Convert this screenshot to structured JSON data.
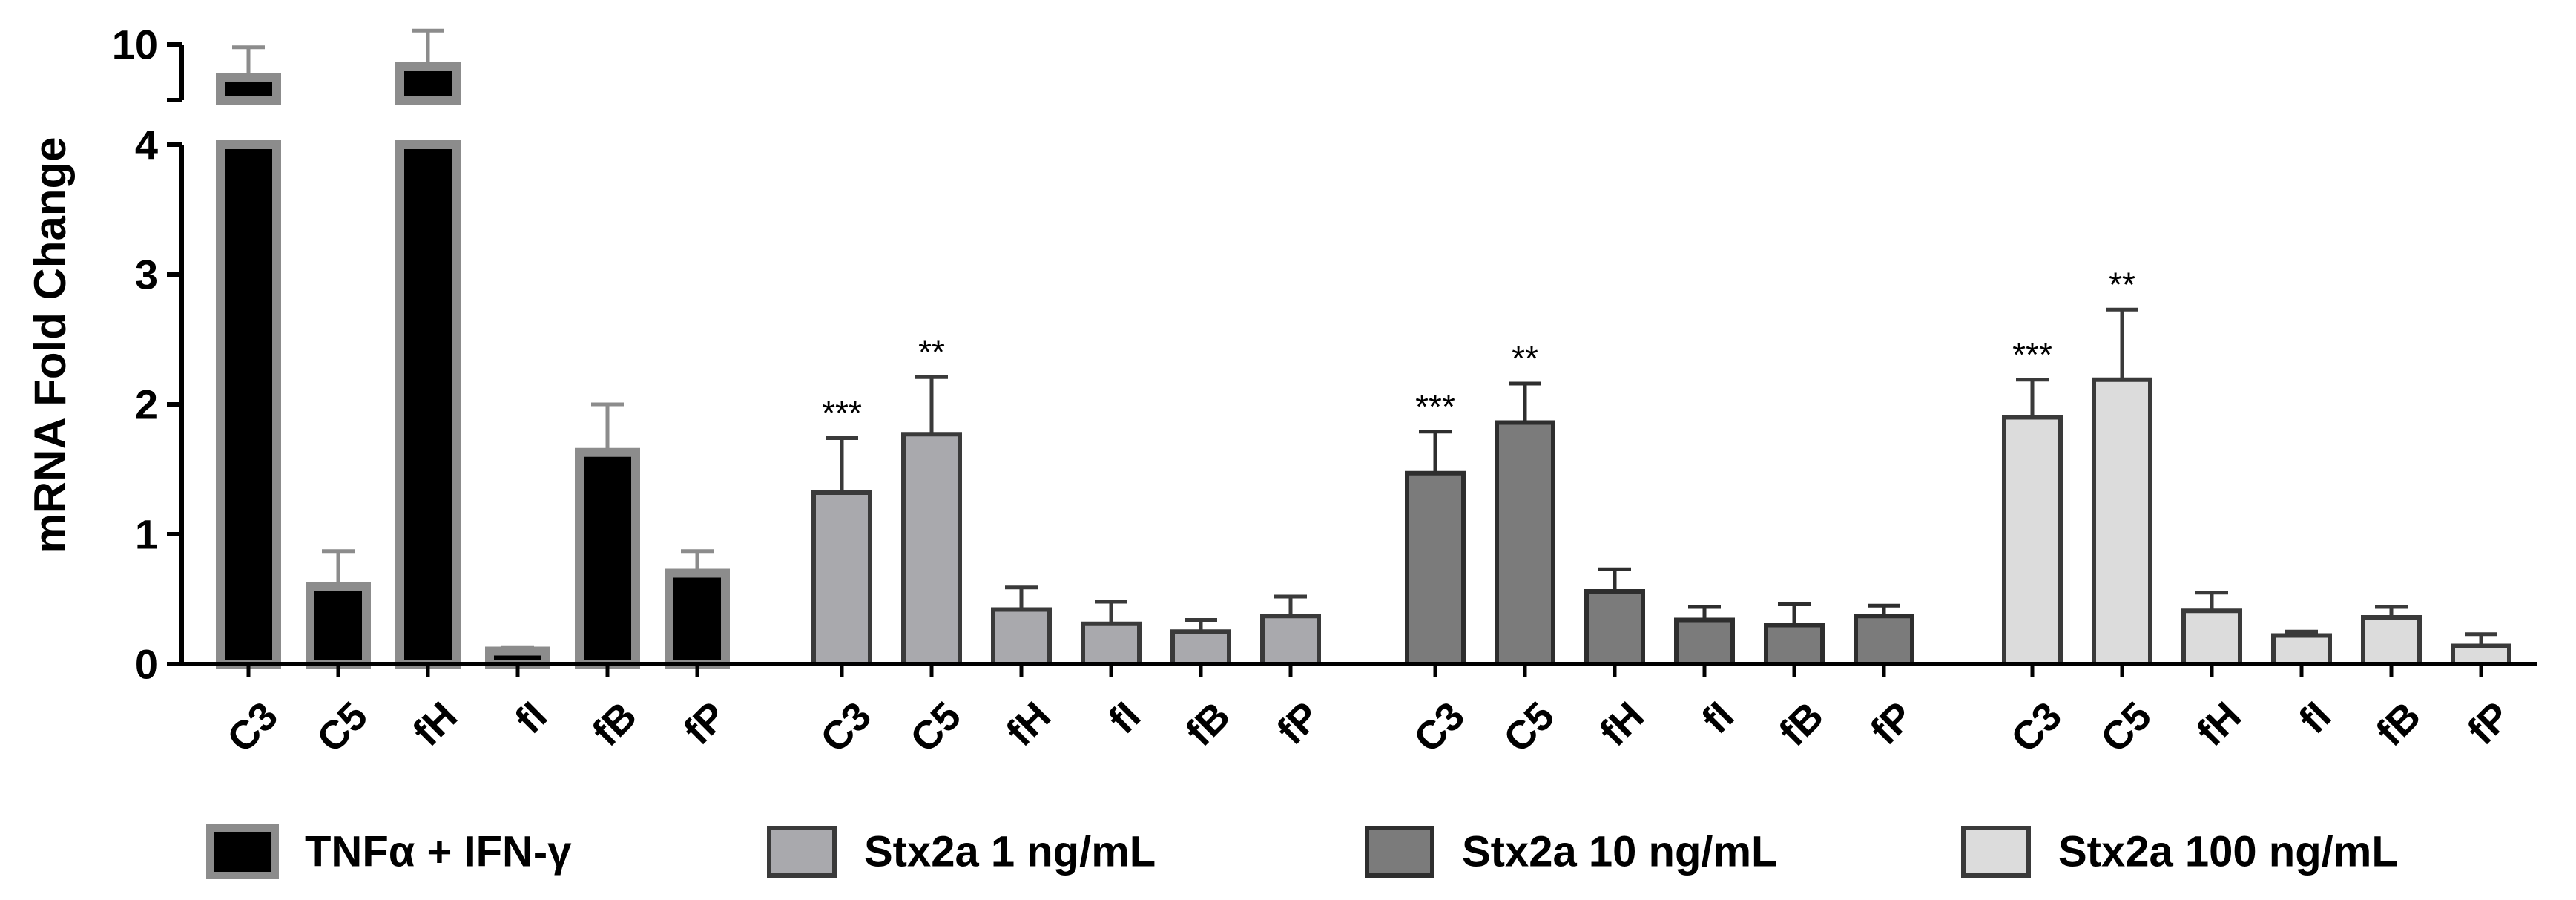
{
  "chart_data": {
    "type": "bar",
    "ylabel": "mRNA Fold Change",
    "y_axis": {
      "lower_range": [
        0,
        4
      ],
      "upper_range": [
        4,
        10
      ],
      "broken": true,
      "ticks": [
        "0",
        "1",
        "2",
        "3",
        "4",
        "10"
      ]
    },
    "categories": [
      "C3",
      "C5",
      "fH",
      "fI",
      "fB",
      "fP"
    ],
    "legend_position": "bottom",
    "series": [
      {
        "name": "TNFα + IFN-γ",
        "fill": "#000000",
        "stroke": "#8c8c8c",
        "values": [
          9.4,
          0.6,
          9.6,
          0.1,
          1.63,
          0.7
        ],
        "errors": [
          0.55,
          0.27,
          0.65,
          0.03,
          0.37,
          0.17
        ],
        "significance": [
          "",
          "",
          "",
          "",
          "",
          ""
        ]
      },
      {
        "name": "Stx2a 1 ng/mL",
        "fill": "#a9a9ad",
        "stroke": "#3a3a3a",
        "values": [
          1.32,
          1.77,
          0.42,
          0.31,
          0.25,
          0.37
        ],
        "errors": [
          0.42,
          0.44,
          0.17,
          0.17,
          0.09,
          0.15
        ],
        "significance": [
          "***",
          "**",
          "",
          "",
          "",
          ""
        ]
      },
      {
        "name": "Stx2a 10 ng/mL",
        "fill": "#7b7b7b",
        "stroke": "#2e2e2e",
        "values": [
          1.47,
          1.86,
          0.56,
          0.34,
          0.3,
          0.37
        ],
        "errors": [
          0.32,
          0.3,
          0.17,
          0.1,
          0.16,
          0.08
        ],
        "significance": [
          "***",
          "**",
          "",
          "",
          "",
          ""
        ]
      },
      {
        "name": "Stx2a 100 ng/mL",
        "fill": "#dcdcdc",
        "stroke": "#3a3a3a",
        "values": [
          1.9,
          2.19,
          0.41,
          0.22,
          0.36,
          0.14
        ],
        "errors": [
          0.29,
          0.54,
          0.14,
          0.03,
          0.08,
          0.09
        ],
        "significance": [
          "***",
          "**",
          "",
          "",
          "",
          ""
        ]
      }
    ]
  }
}
